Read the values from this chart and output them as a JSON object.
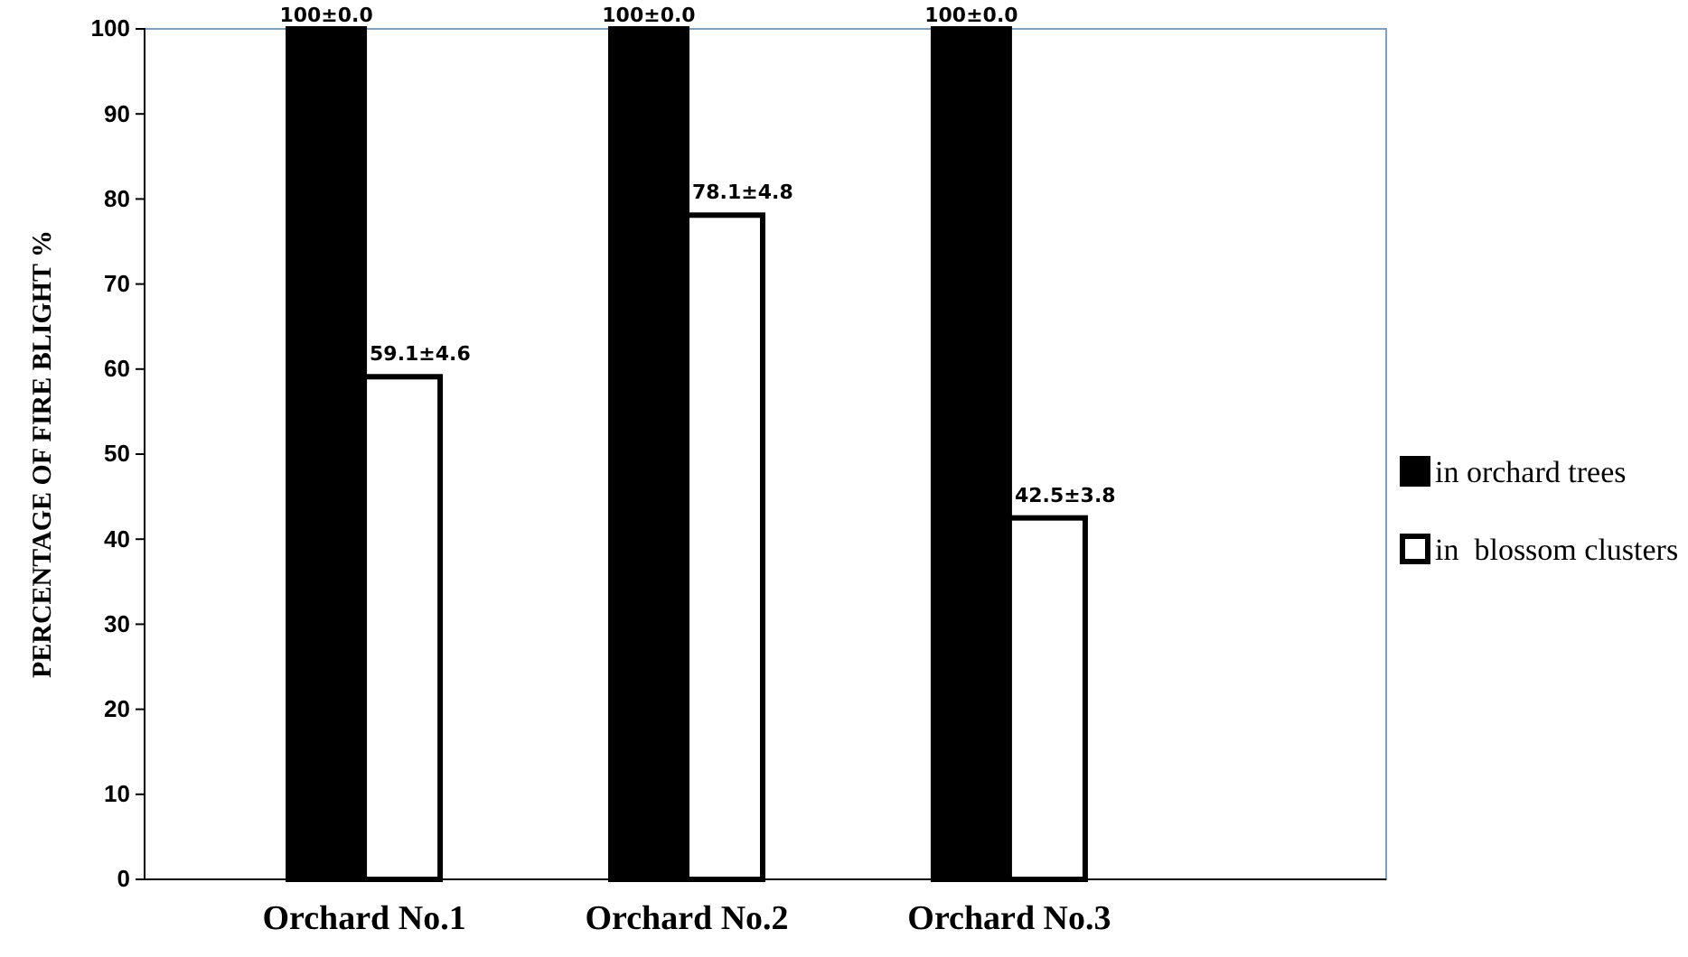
{
  "chart_data": {
    "type": "bar",
    "ylabel": "PERCENTAGE OF FIRE BLIGHT %",
    "categories": [
      "Orchard No.1",
      "Orchard No.2",
      "Orchard No.3"
    ],
    "series": [
      {
        "name": "in orchard trees",
        "color": "#000000",
        "values": [
          100,
          100,
          100
        ],
        "value_labels": [
          "100±0.0",
          "100±0.0",
          "100±0.0"
        ]
      },
      {
        "name": "in  blossom clusters",
        "color": "#ffffff",
        "values": [
          59.1,
          78.1,
          42.5
        ],
        "value_labels": [
          "59.1±4.6",
          "78.1±4.8",
          "42.5±3.8"
        ]
      }
    ],
    "ylim": [
      0,
      100
    ],
    "yticks": [
      0,
      10,
      20,
      30,
      40,
      50,
      60,
      70,
      80,
      90,
      100
    ],
    "grid": false,
    "legend": "right"
  }
}
